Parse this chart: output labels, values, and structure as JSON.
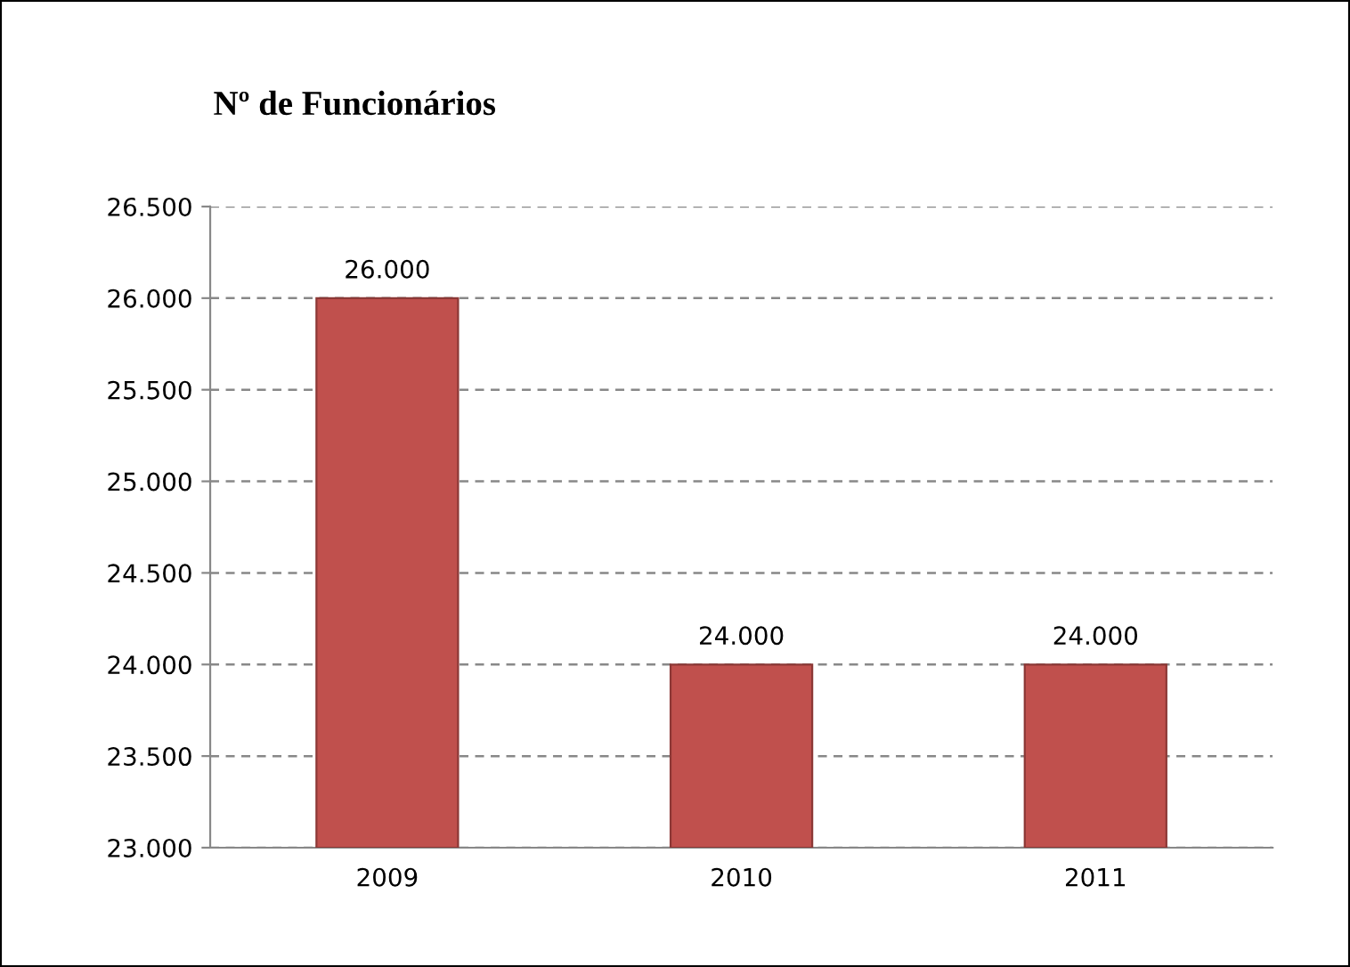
{
  "chart_data": {
    "type": "bar",
    "title": "Nº de Funcionários",
    "categories": [
      "2009",
      "2010",
      "2011"
    ],
    "values": [
      26000,
      24000,
      24000
    ],
    "value_labels": [
      "26.000",
      "24.000",
      "24.000"
    ],
    "color": "#c0504d",
    "ylim": [
      23000,
      26500
    ],
    "yticks": [
      {
        "value": 23000,
        "label": "23.000"
      },
      {
        "value": 23500,
        "label": "23.500"
      },
      {
        "value": 24000,
        "label": "24.000"
      },
      {
        "value": 24500,
        "label": "24.500"
      },
      {
        "value": 25000,
        "label": "25.000"
      },
      {
        "value": 25500,
        "label": "25.500"
      },
      {
        "value": 26000,
        "label": "26.000"
      },
      {
        "value": 26500,
        "label": "26.500"
      }
    ],
    "grid": "y",
    "legend": false
  }
}
